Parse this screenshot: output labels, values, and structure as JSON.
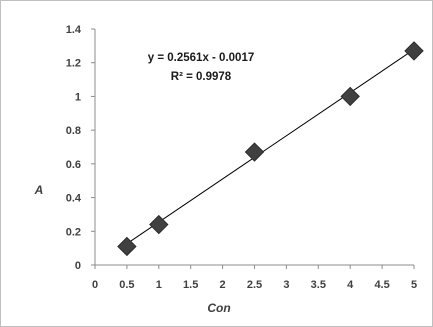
{
  "chart_data": {
    "type": "scatter",
    "title": "",
    "xlabel": "Con",
    "ylabel": "A",
    "xlim": [
      0,
      5
    ],
    "ylim": [
      0,
      1.4
    ],
    "x_ticks": [
      "0",
      "0.5",
      "1",
      "1.5",
      "2",
      "2.5",
      "3",
      "3.5",
      "4",
      "4.5",
      "5"
    ],
    "y_ticks": [
      "0",
      "0.2",
      "0.4",
      "0.6",
      "0.8",
      "1",
      "1.2",
      "1.4"
    ],
    "grid": false,
    "legend": "none",
    "series": [
      {
        "x": [
          0.5,
          1,
          2.5,
          4,
          5
        ],
        "y": [
          0.11,
          0.24,
          0.67,
          1.0,
          1.27
        ],
        "marker": "diamond",
        "color": "#404040"
      }
    ],
    "trendline": {
      "type": "linear",
      "slope": 0.2561,
      "intercept": -0.0017,
      "x_range": [
        0.5,
        5
      ],
      "color": "#000000",
      "equation_label": "y = 0.2561x - 0.0017",
      "r2_label": "R² = 0.9978"
    }
  }
}
